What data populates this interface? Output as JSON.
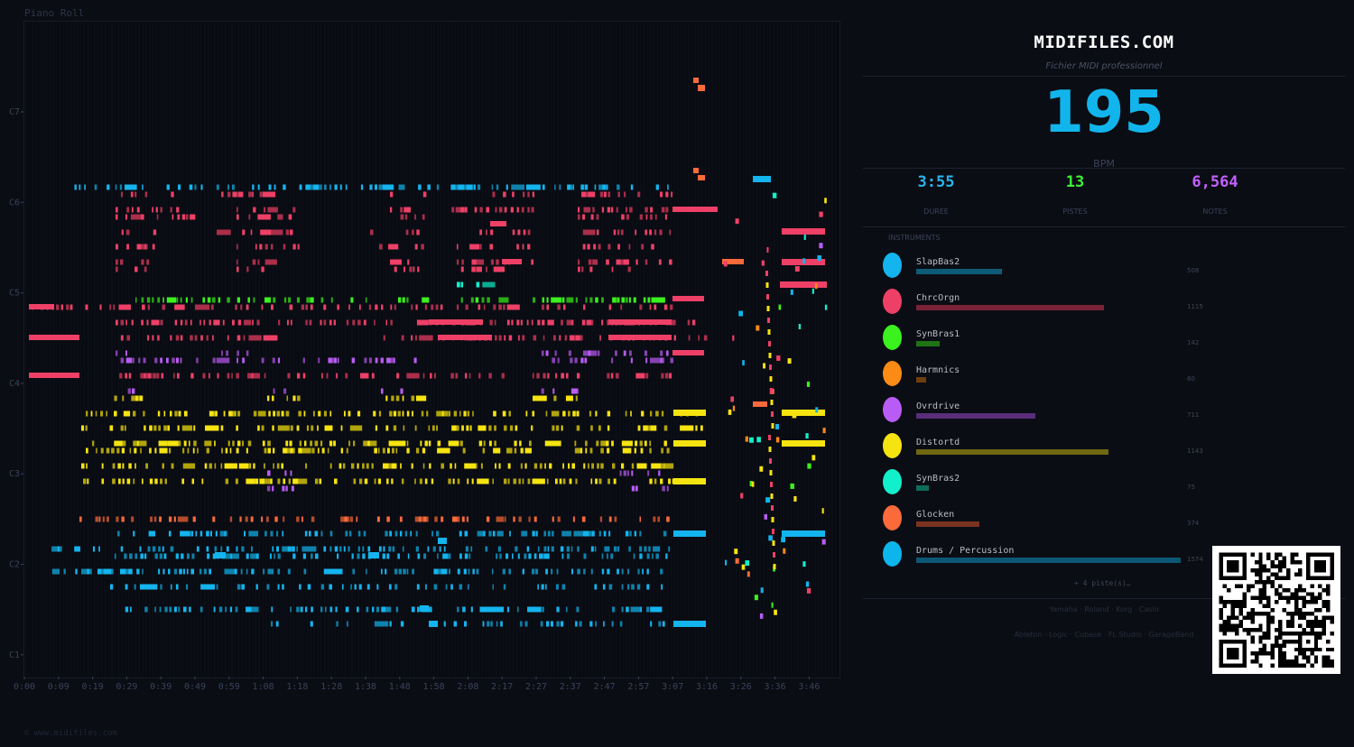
{
  "piano_roll": {
    "title": "Piano Roll",
    "note_labels": [
      "C7",
      "C6",
      "C5",
      "C4",
      "C3",
      "C2",
      "C1"
    ],
    "time_labels": [
      "0:00",
      "0:09",
      "0:19",
      "0:29",
      "0:39",
      "0:49",
      "0:59",
      "1:08",
      "1:18",
      "1:28",
      "1:38",
      "1:48",
      "1:58",
      "2:08",
      "2:17",
      "2:27",
      "2:37",
      "2:47",
      "2:57",
      "3:07",
      "3:16",
      "3:26",
      "3:36",
      "3:46"
    ]
  },
  "footer": {
    "copyright": "© www.midifiles.com"
  },
  "panel": {
    "title": "MIDIFILES.COM",
    "subtitle": "Fichier MIDI professionnel",
    "bpm_value": "195",
    "bpm_label": "BPM",
    "stats": [
      {
        "value": "3:55",
        "label": "DUREE",
        "color": "#29b5ec"
      },
      {
        "value": "13",
        "label": "PISTES",
        "color": "#3df13a"
      },
      {
        "value": "6,564",
        "label": "NOTES",
        "color": "#c262ff"
      }
    ],
    "instruments_heading": "INSTRUMENTS",
    "instruments": [
      {
        "name": "SlapBas2",
        "count": "508",
        "color": "#14b4ee",
        "bar_color": "#0e5b78"
      },
      {
        "name": "ChrcOrgn",
        "count": "1115",
        "color": "#ee4067",
        "bar_color": "#7a2238"
      },
      {
        "name": "SynBras1",
        "count": "142",
        "color": "#3bf11e",
        "bar_color": "#1e7414"
      },
      {
        "name": "Harmnics",
        "count": "60",
        "color": "#fb8b15",
        "bar_color": "#6e3f0c"
      },
      {
        "name": "Ovrdrive",
        "count": "711",
        "color": "#b95cf5",
        "bar_color": "#5a2d7a"
      },
      {
        "name": "Distortd",
        "count": "1143",
        "color": "#f6e411",
        "bar_color": "#6f6712"
      },
      {
        "name": "SynBras2",
        "count": "75",
        "color": "#11f0cb",
        "bar_color": "#0f6b5b"
      },
      {
        "name": "Glocken",
        "count": "374",
        "color": "#fa6a3b",
        "bar_color": "#7a3320"
      },
      {
        "name": "Drums / Percussion",
        "count": "1574",
        "color": "#0cb6ec",
        "bar_color": "#0c5775"
      }
    ],
    "more_tracks": "+ 4 piste(s)…",
    "brands_line1": "Yamaha · Roland · Korg · Casio",
    "brands_line2": "Ableton · Logic · Cubase · FL Studio · GarageBand"
  }
}
